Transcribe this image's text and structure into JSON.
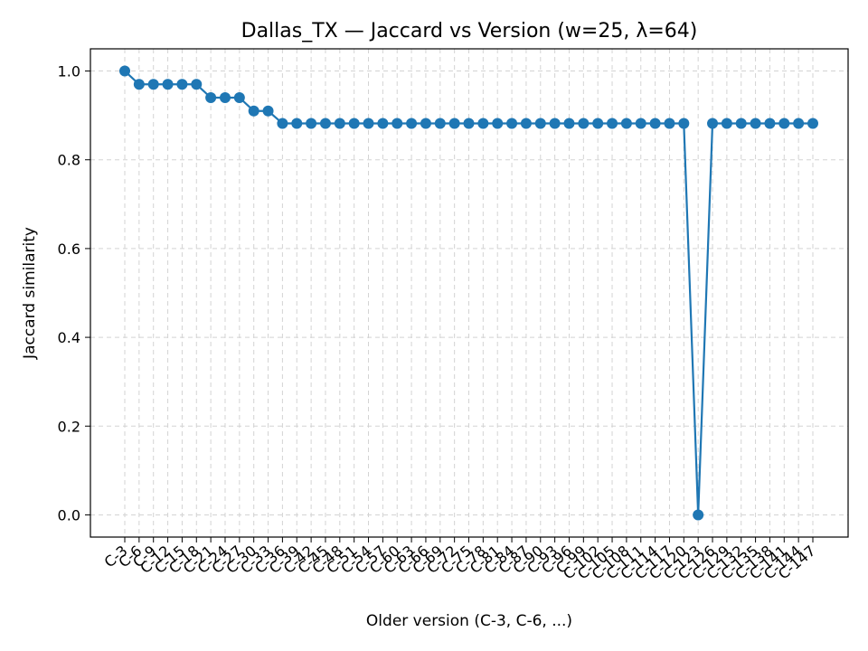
{
  "chart_data": {
    "type": "line",
    "title": "Dallas_TX — Jaccard vs Version (w=25, λ=64)",
    "xlabel": "Older version (C-3, C-6, ...)",
    "ylabel": "Jaccard similarity",
    "categories": [
      "C-3",
      "C-6",
      "C-9",
      "C-12",
      "C-15",
      "C-18",
      "C-21",
      "C-24",
      "C-27",
      "C-30",
      "C-33",
      "C-36",
      "C-39",
      "C-42",
      "C-45",
      "C-48",
      "C-51",
      "C-54",
      "C-57",
      "C-60",
      "C-63",
      "C-66",
      "C-69",
      "C-72",
      "C-75",
      "C-78",
      "C-81",
      "C-84",
      "C-87",
      "C-90",
      "C-93",
      "C-96",
      "C-99",
      "C-102",
      "C-105",
      "C-108",
      "C-111",
      "C-114",
      "C-117",
      "C-120",
      "C-123",
      "C-126",
      "C-129",
      "C-132",
      "C-135",
      "C-138",
      "C-141",
      "C-144",
      "C-147"
    ],
    "series": [
      {
        "values": [
          1.0,
          0.97,
          0.97,
          0.97,
          0.97,
          0.97,
          0.94,
          0.94,
          0.94,
          0.91,
          0.91,
          0.882,
          0.882,
          0.882,
          0.882,
          0.882,
          0.882,
          0.882,
          0.882,
          0.882,
          0.882,
          0.882,
          0.882,
          0.882,
          0.882,
          0.882,
          0.882,
          0.882,
          0.882,
          0.882,
          0.882,
          0.882,
          0.882,
          0.882,
          0.882,
          0.882,
          0.882,
          0.882,
          0.882,
          0.882,
          0.0,
          0.882,
          0.882,
          0.882,
          0.882,
          0.882,
          0.882,
          0.882,
          0.882
        ]
      }
    ],
    "yticks": [
      "0.0",
      "0.2",
      "0.4",
      "0.6",
      "0.8",
      "1.0"
    ],
    "ylim": [
      -0.05,
      1.05
    ],
    "grid": true,
    "colors": {
      "line": "#1f77b4",
      "grid": "#d3d3d3",
      "axis": "#000000"
    }
  }
}
